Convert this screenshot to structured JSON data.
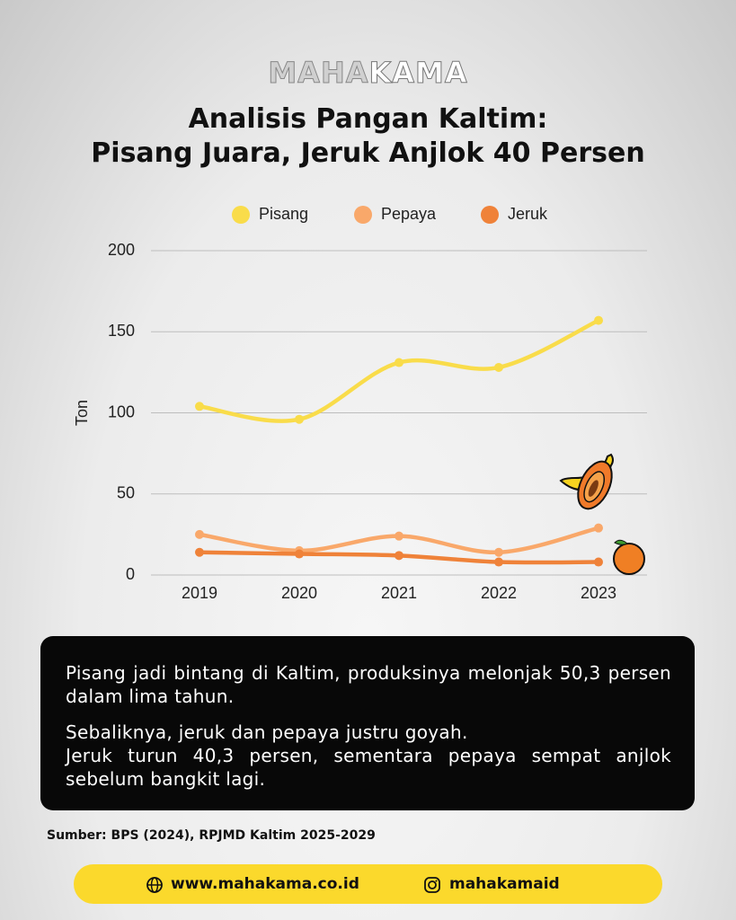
{
  "brand": {
    "light": "MAHA",
    "bold": "KAMA"
  },
  "chart_data": {
    "type": "line",
    "title": [
      "Analisis Pangan Kaltim:",
      "Pisang Juara, Jeruk Anjlok 40 Persen"
    ],
    "ylabel": "Ton",
    "categories": [
      "2019",
      "2020",
      "2021",
      "2022",
      "2023"
    ],
    "series": [
      {
        "name": "Pisang",
        "color": "#f9dc4a",
        "values": [
          104,
          96,
          131,
          128,
          157
        ]
      },
      {
        "name": "Pepaya",
        "color": "#f9a86a",
        "values": [
          25,
          15,
          24,
          14,
          29
        ]
      },
      {
        "name": "Jeruk",
        "color": "#ef8239",
        "values": [
          14,
          13,
          12,
          8,
          8
        ]
      }
    ],
    "ylim": [
      0,
      200
    ],
    "yticks": [
      0,
      50,
      100,
      150,
      200
    ],
    "grid": true,
    "legend": "top",
    "smooth": true
  },
  "summary": [
    "Pisang jadi bintang di Kaltim, produksinya melonjak 50,3 persen dalam lima tahun.",
    "Sebaliknya, jeruk dan pepaya justru goyah.",
    "Jeruk turun 40,3 persen, sementara pepaya sempat anjlok sebelum bangkit lagi."
  ],
  "source": "Sumber: BPS (2024), RPJMD Kaltim 2025-2029",
  "footer": {
    "website": "www.mahakama.co.id",
    "instagram": "mahakamaid"
  }
}
